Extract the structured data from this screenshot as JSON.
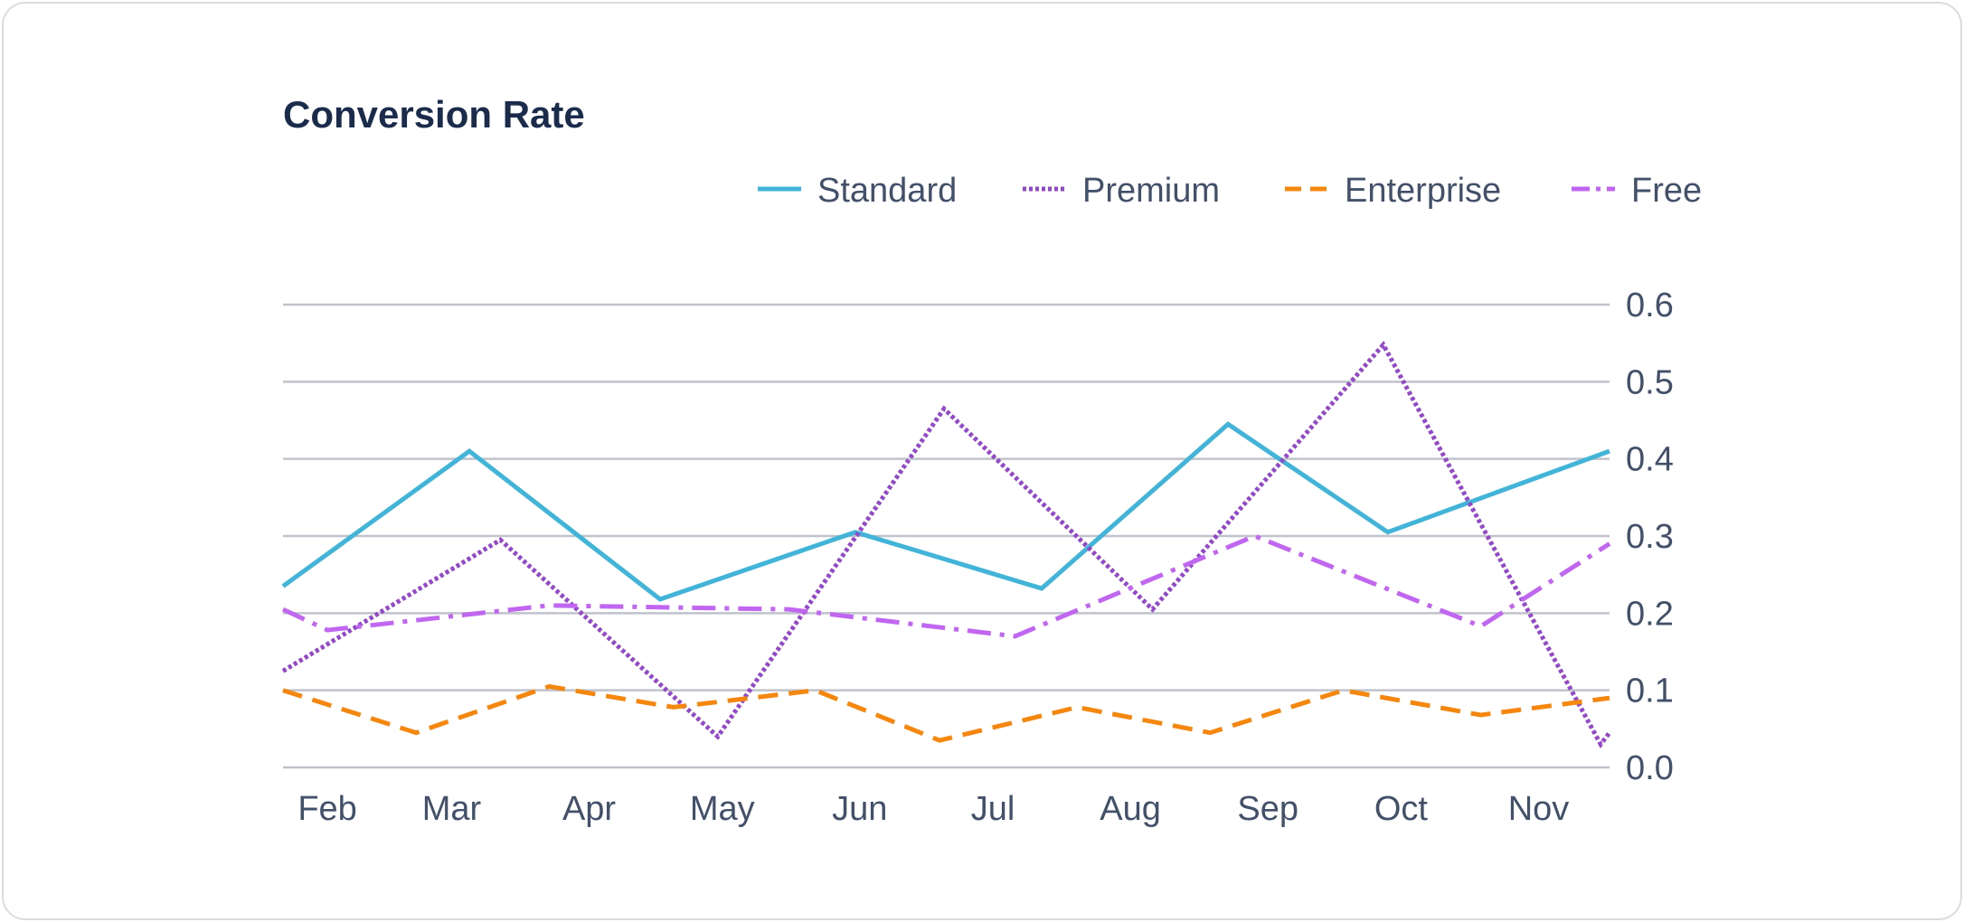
{
  "chart_data": {
    "type": "line",
    "title": "Conversion Rate",
    "xlabel": "",
    "ylabel": "",
    "ylim": [
      0,
      0.6
    ],
    "y_ticks": [
      "0.0",
      "0.1",
      "0.2",
      "0.3",
      "0.4",
      "0.5",
      "0.6"
    ],
    "y_axis_side": "right",
    "x_ticks": [
      "Feb",
      "Mar",
      "Apr",
      "May",
      "Jun",
      "Jul",
      "Aug",
      "Sep",
      "Oct",
      "Nov"
    ],
    "x_range": [
      "Jan 22",
      "Nov 17"
    ],
    "grid": "horizontal",
    "legend_position": "top-right",
    "series": [
      {
        "name": "Standard",
        "color": "#42b4d8",
        "style": "solid",
        "x": [
          "Jan 22",
          "Mar 5",
          "Apr 17",
          "May 31",
          "Jul 12",
          "Aug 23",
          "Sep 28",
          "Nov 17"
        ],
        "y": [
          0.235,
          0.41,
          0.218,
          0.305,
          0.232,
          0.445,
          0.305,
          0.41
        ]
      },
      {
        "name": "Premium",
        "color": "#9347c9",
        "style": "dotted",
        "x": [
          "Jan 22",
          "Mar 12",
          "Apr 30",
          "Jun 20",
          "Aug 6",
          "Sep 27",
          "Nov 15",
          "Nov 17"
        ],
        "y": [
          0.125,
          0.295,
          0.04,
          0.465,
          0.205,
          0.548,
          0.03,
          0.045
        ]
      },
      {
        "name": "Enterprise",
        "color": "#f5870f",
        "style": "dashed",
        "x": [
          "Jan 22",
          "Feb 21",
          "Mar 23",
          "Apr 20",
          "May 22",
          "Jun 19",
          "Jul 20",
          "Aug 19",
          "Sep 18",
          "Oct 19",
          "Nov 17"
        ],
        "y": [
          0.1,
          0.045,
          0.105,
          0.078,
          0.1,
          0.035,
          0.078,
          0.045,
          0.1,
          0.068,
          0.09
        ]
      },
      {
        "name": "Free",
        "color": "#c066f0",
        "style": "dash-dot",
        "x": [
          "Jan 22",
          "Feb 1",
          "Mar 23",
          "May 16",
          "Jul 6",
          "Aug 29",
          "Oct 19",
          "Nov 17"
        ],
        "y": [
          0.205,
          0.178,
          0.21,
          0.205,
          0.17,
          0.3,
          0.183,
          0.29
        ]
      }
    ]
  }
}
